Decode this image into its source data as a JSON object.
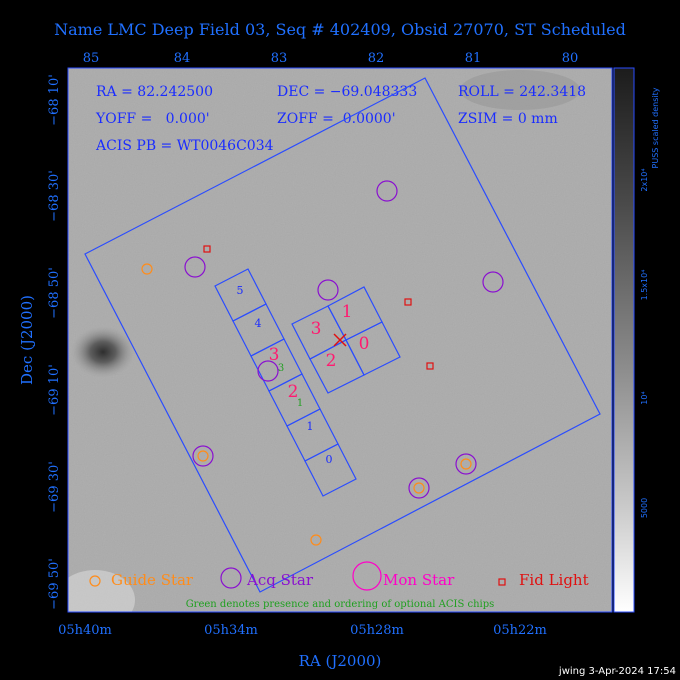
{
  "title": "Name LMC Deep Field 03, Seq # 402409, Obsid 27070, ST Scheduled",
  "info": {
    "ra": "RA = 82.242500",
    "dec": "DEC = −69.048333",
    "roll": "ROLL = 242.3418",
    "yoff": "YOFF =   0.000'",
    "zoff": "ZOFF =  0.0000'",
    "zsim": "ZSIM = 0 mm",
    "acis": "ACIS PB = WT0046C034"
  },
  "axes": {
    "xlabel": "RA (J2000)",
    "ylabel": "Dec (J2000)",
    "top_ticks": [
      "85",
      "84",
      "83",
      "82",
      "81",
      "80"
    ],
    "bottom_ticks": [
      "05h40m",
      "05h34m",
      "05h28m",
      "05h22m"
    ],
    "left_ticks": [
      "−68 10'",
      "−68 30'",
      "−68 50'",
      "−69 10'",
      "−69 30'",
      "−69 50'"
    ]
  },
  "colorbar": {
    "label": "PUSS scaled density",
    "ticks": [
      "2x10⁴",
      "1.5x10⁴",
      "10⁴",
      "5000"
    ]
  },
  "legend": {
    "guide": "Guide Star",
    "acq": "Acq Star",
    "mon": "Mon Star",
    "fid": "Fid Light",
    "note": "Green denotes presence and ordering of optional ACIS chips"
  },
  "chips": {
    "imaging": [
      "3",
      "1",
      "2",
      "0"
    ],
    "spectro": [
      "5",
      "4",
      "3",
      "2",
      "1",
      "0"
    ],
    "optional": [
      "3",
      "1"
    ]
  },
  "footer": "jwing  3-Apr-2024 17:54",
  "colors": {
    "frame": "#2a4cff",
    "guide": "#ff8c1a",
    "acq": "#8a10d0",
    "mon": "#ff00c8",
    "fid": "#e01010",
    "chipnum": "#ff1a70",
    "optional": "#20a020",
    "label": "#2070ff"
  }
}
